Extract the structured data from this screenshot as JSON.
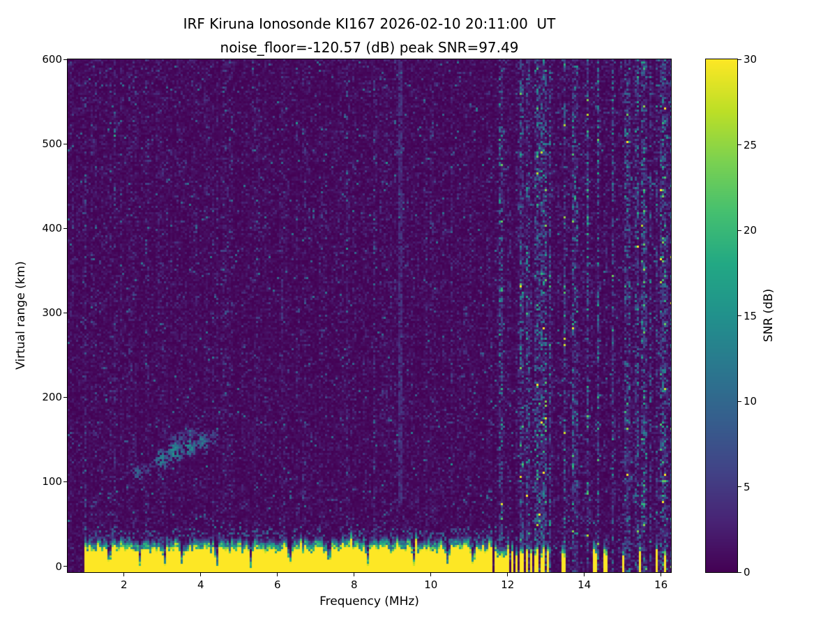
{
  "chart_data": {
    "type": "heatmap",
    "title": "IRF Kiruna Ionosonde KI167 2026-02-10 20:11:00  UT",
    "subtitle": "noise_floor=-120.57 (dB) peak SNR=97.49",
    "xlabel": "Frequency (MHz)",
    "ylabel": "Virtual range (km)",
    "colorbar_label": "SNR (dB)",
    "xlim": [
      0.53,
      16.26
    ],
    "ylim": [
      -7,
      600
    ],
    "clim": [
      0,
      30
    ],
    "xticks": [
      2,
      4,
      6,
      8,
      10,
      12,
      14,
      16
    ],
    "yticks": [
      0,
      100,
      200,
      300,
      400,
      500,
      600
    ],
    "cticks": [
      0,
      5,
      10,
      15,
      20,
      25,
      30
    ],
    "grid": false,
    "colormap": {
      "name": "viridis",
      "stops": [
        [
          0.0,
          "#440154"
        ],
        [
          0.1,
          "#482475"
        ],
        [
          0.2,
          "#414487"
        ],
        [
          0.3,
          "#355f8d"
        ],
        [
          0.4,
          "#2a788e"
        ],
        [
          0.5,
          "#21918c"
        ],
        [
          0.6,
          "#22a884"
        ],
        [
          0.7,
          "#44bf70"
        ],
        [
          0.8,
          "#7ad151"
        ],
        [
          0.9,
          "#bddf26"
        ],
        [
          1.0,
          "#fde725"
        ]
      ]
    },
    "features": {
      "noise_floor_db": -120.57,
      "peak_snr_db": 97.49,
      "background_noise_mean_db": 1.05,
      "ground_clutter": {
        "freq_start_mhz": 0.97,
        "freq_continuous_end_mhz": 11.62,
        "top_km": 28,
        "snr_db": 30
      },
      "clutter_notches_mhz": [
        1.62,
        2.42,
        3.06,
        3.52,
        4.42,
        5.3,
        6.32,
        7.35,
        8.35,
        9.55,
        10.45,
        11.1
      ],
      "intermittent_clutter_columns_mhz": [
        11.68,
        11.76,
        11.85,
        11.94,
        12.03,
        12.13,
        12.24,
        12.36,
        12.49,
        12.62,
        12.76,
        12.91,
        13.06,
        13.45,
        14.28,
        14.55,
        15.02,
        15.45,
        15.88,
        16.12
      ],
      "interference_line_mhz": 9.2,
      "echo_trace_blobs": [
        {
          "f": 2.35,
          "r": 110,
          "fw": 0.18,
          "rh": 9,
          "snr": 9
        },
        {
          "f": 2.62,
          "r": 116,
          "fw": 0.14,
          "rh": 8,
          "snr": 7
        },
        {
          "f": 3.0,
          "r": 127,
          "fw": 0.22,
          "rh": 12,
          "snr": 12
        },
        {
          "f": 3.35,
          "r": 135,
          "fw": 0.22,
          "rh": 13,
          "snr": 14
        },
        {
          "f": 3.7,
          "r": 142,
          "fw": 0.2,
          "rh": 12,
          "snr": 13
        },
        {
          "f": 4.05,
          "r": 148,
          "fw": 0.18,
          "rh": 11,
          "snr": 11
        },
        {
          "f": 4.35,
          "r": 153,
          "fw": 0.12,
          "rh": 9,
          "snr": 8
        },
        {
          "f": 3.4,
          "r": 152,
          "fw": 0.25,
          "rh": 8,
          "snr": 7
        },
        {
          "f": 3.75,
          "r": 158,
          "fw": 0.2,
          "rh": 7,
          "snr": 6
        }
      ]
    }
  }
}
